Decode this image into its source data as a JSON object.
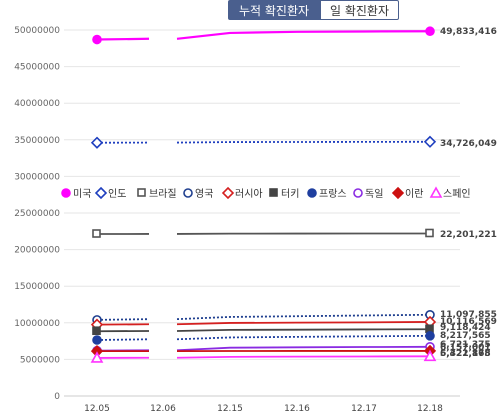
{
  "tabs": {
    "cumulative_label": "누적 확진환자",
    "daily_label": "일 확진환자"
  },
  "chart_data": {
    "type": "line",
    "x": [
      "12.05",
      "12.06",
      "12.15",
      "12.16",
      "12.17",
      "12.18"
    ],
    "ylim": [
      0,
      50000000
    ],
    "yticks": [
      "0",
      "5000000",
      "10000000",
      "15000000",
      "20000000",
      "25000000",
      "30000000",
      "35000000",
      "40000000",
      "45000000",
      "50000000"
    ],
    "legend_position": "middle",
    "grid": true,
    "series": [
      {
        "name": "미국",
        "color": "#ff00ff",
        "marker": "circle-filled",
        "dash": "solid",
        "values": [
          48700000,
          48800000,
          49600000,
          49750000,
          49800000,
          49833416
        ],
        "end_label": "49,833,416"
      },
      {
        "name": "인도",
        "color": "#1f3fbf",
        "marker": "diamond-open",
        "dash": "dotted",
        "values": [
          34600000,
          34620000,
          34690000,
          34700000,
          34715000,
          34726049
        ],
        "end_label": "34,726,049"
      },
      {
        "name": "브라질",
        "color": "#555555",
        "marker": "square-open",
        "dash": "solid",
        "values": [
          22130000,
          22140000,
          22180000,
          22190000,
          22195000,
          22201221
        ],
        "end_label": "22,201,221"
      },
      {
        "name": "영국",
        "color": "#1f3f8f",
        "marker": "circle-open",
        "dash": "dotted",
        "values": [
          10400000,
          10500000,
          10800000,
          10900000,
          11000000,
          11097855
        ],
        "end_label": "11,097,855"
      },
      {
        "name": "러시아",
        "color": "#d42020",
        "marker": "diamond-open",
        "dash": "solid",
        "values": [
          9750000,
          9800000,
          9980000,
          10020000,
          10060000,
          10116569
        ],
        "end_label": "10,116,569"
      },
      {
        "name": "터키",
        "color": "#444444",
        "marker": "square-filled",
        "dash": "solid",
        "values": [
          8850000,
          8880000,
          9030000,
          9060000,
          9090000,
          9118424
        ],
        "end_label": "9,118,424"
      },
      {
        "name": "프랑스",
        "color": "#1f3f9f",
        "marker": "circle-filled",
        "dash": "dotted",
        "values": [
          7650000,
          7750000,
          8000000,
          8080000,
          8150000,
          8217565
        ],
        "end_label": "8,217,565"
      },
      {
        "name": "독일",
        "color": "#8a2be2",
        "marker": "circle-open",
        "dash": "solid",
        "values": [
          6200000,
          6250000,
          6600000,
          6650000,
          6690000,
          6721375
        ],
        "end_label": "6,721,375"
      },
      {
        "name": "이란",
        "color": "#cc1111",
        "marker": "diamond-filled",
        "dash": "solid",
        "values": [
          6130000,
          6135000,
          6150000,
          6153000,
          6155000,
          6157000
        ],
        "end_label": ""
      },
      {
        "name": "스페인",
        "color": "#ff33ff",
        "marker": "triangle-open",
        "dash": "solid",
        "values": [
          5200000,
          5230000,
          5350000,
          5380000,
          5400000,
          5422168
        ],
        "end_label": "5,422,168"
      }
    ],
    "overlap_labels": [
      "6,157,001",
      "6,321,875"
    ]
  }
}
